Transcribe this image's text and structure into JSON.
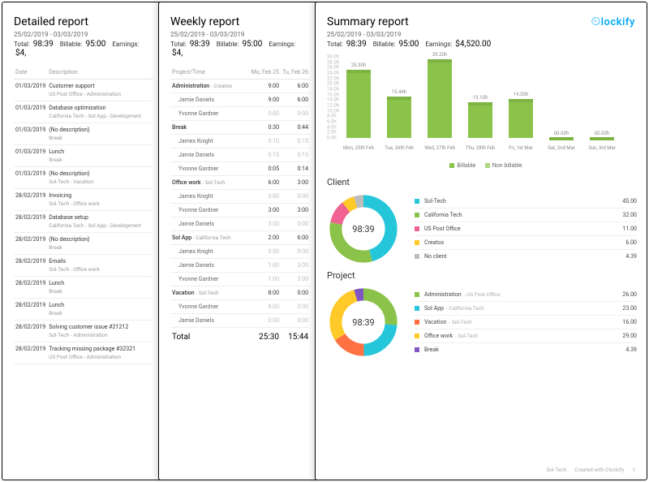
{
  "brand": "lockify",
  "date_range": "25/02/2019 - 03/03/2019",
  "totals": {
    "total_label": "Total:",
    "total": "98:39",
    "billable_label": "Billable:",
    "billable": "95:00",
    "earnings_label": "Earnings:",
    "earnings": "$4,520.00",
    "earnings_trunc": "$4,"
  },
  "detailed": {
    "title": "Detailed report",
    "columns": [
      "Date",
      "Description"
    ],
    "rows": [
      {
        "date": "01/03/2019",
        "desc": "Customer support",
        "sub": "US Post Office - Administration"
      },
      {
        "date": "01/03/2019",
        "desc": "Database optimization",
        "sub": "California Tech - Sol App - Development"
      },
      {
        "date": "01/03/2019",
        "desc": "(No description)",
        "sub": "Break"
      },
      {
        "date": "01/03/2019",
        "desc": "Lunch",
        "sub": "Break"
      },
      {
        "date": "01/03/2019",
        "desc": "(No description)",
        "sub": "Sol-Tech - Vacation"
      },
      {
        "date": "28/02/2019",
        "desc": "Invoicing",
        "sub": "Sol-Tech - Office work"
      },
      {
        "date": "28/02/2019",
        "desc": "Database setup",
        "sub": "California Tech - Sol App - Development"
      },
      {
        "date": "28/02/2019",
        "desc": "(No description)",
        "sub": "Break"
      },
      {
        "date": "28/02/2019",
        "desc": "Emails",
        "sub": "Sol-Tech - Office work"
      },
      {
        "date": "28/02/2019",
        "desc": "Lunch",
        "sub": "Break"
      },
      {
        "date": "28/02/2019",
        "desc": "Lunch",
        "sub": "Break"
      },
      {
        "date": "28/02/2019",
        "desc": "Solving customer issue #21212",
        "sub": "Sol-Tech - Administration"
      },
      {
        "date": "28/02/2019",
        "desc": "Tracking missing package #32321",
        "sub": "US Post Office - Administration"
      }
    ]
  },
  "weekly": {
    "title": "Weekly report",
    "columns": [
      "Project/Time",
      "Mo, Feb 25",
      "Tu, Feb 26"
    ],
    "groups": [
      {
        "head": "Administration",
        "head_sub": "- Creatos",
        "c1": "9:00",
        "c2": "6:00",
        "people": [
          {
            "name": "Jamie Daniels",
            "c1": "9:00",
            "c2": "6:00"
          },
          {
            "name": "Yvonne Gardner",
            "c1": "0:00",
            "c2": "0:00",
            "muted": true
          }
        ]
      },
      {
        "head": "Break",
        "head_sub": "",
        "c1": "0:30",
        "c2": "0:44",
        "people": [
          {
            "name": "James Knight",
            "c1": "0:10",
            "c2": "0:15",
            "muted": true
          },
          {
            "name": "Jamie Daniels",
            "c1": "0:15",
            "c2": "0:15",
            "muted": true
          },
          {
            "name": "Yvonne Gardner",
            "c1": "0:05",
            "c2": "0:14"
          }
        ]
      },
      {
        "head": "Office work",
        "head_sub": "- Sol-Tech",
        "c1": "6:00",
        "c2": "3:00",
        "people": [
          {
            "name": "James Knight",
            "c1": "0:00",
            "c2": "0:00",
            "muted": true
          },
          {
            "name": "Yvonne Gardner",
            "c1": "3:00",
            "c2": "3:00"
          },
          {
            "name": "Jamie Daniels",
            "c1": "3:00",
            "c2": "0:00",
            "muted": true
          }
        ]
      },
      {
        "head": "Sol App",
        "head_sub": "- California Tech",
        "c1": "2:00",
        "c2": "6:00",
        "people": [
          {
            "name": "James Knight",
            "c1": "0:00",
            "c2": "0:00",
            "muted": true
          },
          {
            "name": "Jamie Daniels",
            "c1": "1:00",
            "c2": "3:00",
            "muted": true
          },
          {
            "name": "Yvonne Gardner",
            "c1": "1:00",
            "c2": "3:00",
            "muted": true
          }
        ]
      },
      {
        "head": "Vacation",
        "head_sub": "- Sol-Tech",
        "c1": "8:00",
        "c2": "0:00",
        "people": [
          {
            "name": "Yvonne Gardner",
            "c1": "8:00",
            "c2": "0:00",
            "muted": true
          },
          {
            "name": "Jamie Daniels",
            "c1": "0:00",
            "c2": "0:00",
            "muted": true
          }
        ]
      }
    ],
    "total_label": "Total",
    "total_c1": "25:30",
    "total_c2": "15:44"
  },
  "summary": {
    "title": "Summary report",
    "chart": {
      "ylim": [
        0,
        30
      ],
      "ystep": 2,
      "bar_color": "#8bc34a",
      "bar_cap": "#7cb342",
      "grid": "#eeeeee",
      "bars": [
        {
          "label": "Mon, 25th Feb",
          "value": 25.3,
          "text": "25.30h"
        },
        {
          "label": "Tue, 26th Feb",
          "value": 15.44,
          "text": "15.44h"
        },
        {
          "label": "Wed, 27th Feb",
          "value": 29.2,
          "text": "29.20h"
        },
        {
          "label": "Thu, 28th Feb",
          "value": 13.1,
          "text": "13.10h"
        },
        {
          "label": "Fri, 1st Mar",
          "value": 14.55,
          "text": "14.55h"
        },
        {
          "label": "Sat, 2nd Mar",
          "value": 0,
          "text": "00.00h"
        },
        {
          "label": "Sun, 3rd Mar",
          "value": 0,
          "text": "00.00h"
        }
      ],
      "legend": {
        "billable": "Billable",
        "nonbillable": "Non billable"
      }
    },
    "client": {
      "title": "Client",
      "center": "98:39",
      "items": [
        {
          "name": "Sol-Tech",
          "val": "45.00",
          "color": "#26c6da",
          "frac": 0.456
        },
        {
          "name": "California Tech",
          "val": "32.00",
          "color": "#8bc34a",
          "frac": 0.324
        },
        {
          "name": "US Post Office",
          "val": "11.00",
          "color": "#f06292",
          "frac": 0.111
        },
        {
          "name": "Creatos",
          "val": "6.00",
          "color": "#ffca28",
          "frac": 0.061
        },
        {
          "name": "No client",
          "val": "4.39",
          "color": "#bdbdbd",
          "frac": 0.048
        }
      ]
    },
    "project": {
      "title": "Project",
      "center": "98:39",
      "items": [
        {
          "name": "Administration",
          "sub": "- US Post Office",
          "val": "26.00",
          "color": "#8bc34a",
          "frac": 0.264
        },
        {
          "name": "Sol App",
          "sub": "- California Tech",
          "val": "23.00",
          "color": "#26c6da",
          "frac": 0.233
        },
        {
          "name": "Vacation",
          "sub": "- Sol-Tech",
          "val": "16.00",
          "color": "#ff7043",
          "frac": 0.162
        },
        {
          "name": "Office work",
          "sub": "- Sol-Tech",
          "val": "29.00",
          "color": "#ffca28",
          "frac": 0.294
        },
        {
          "name": "Break",
          "sub": "",
          "val": "4.39",
          "color": "#7e57c2",
          "frac": 0.047
        }
      ]
    }
  },
  "footer": {
    "org": "Sol-Tech",
    "credit": "Created with Clockify",
    "page": "1"
  }
}
